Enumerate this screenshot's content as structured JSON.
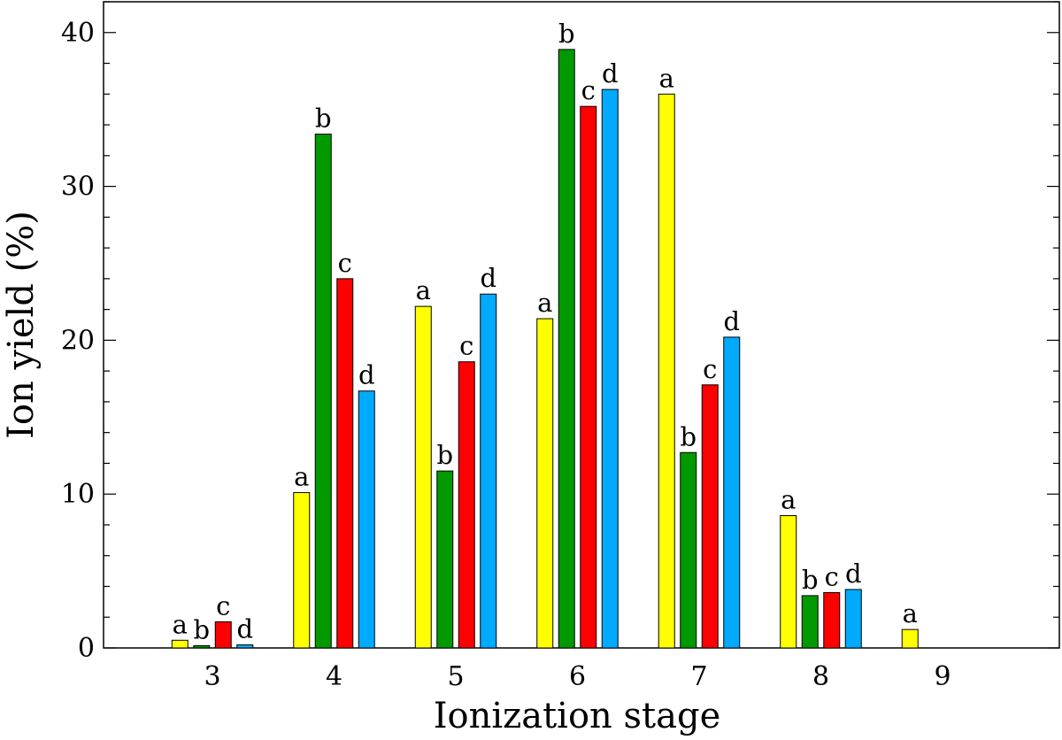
{
  "chart_data": {
    "type": "bar",
    "title": "",
    "xlabel": "Ionization stage",
    "ylabel": "Ion yield (%)",
    "ylim": [
      0,
      42
    ],
    "yticks": [
      0,
      10,
      20,
      30,
      40
    ],
    "categories": [
      "3",
      "4",
      "5",
      "6",
      "7",
      "8",
      "9"
    ],
    "series": [
      {
        "name": "a",
        "color": "#ffff00",
        "values": [
          0.5,
          10.1,
          22.2,
          21.4,
          36.0,
          8.6,
          1.2
        ]
      },
      {
        "name": "b",
        "color": "#009900",
        "values": [
          0.15,
          33.4,
          11.5,
          38.9,
          12.7,
          3.4,
          null
        ]
      },
      {
        "name": "c",
        "color": "#ff0000",
        "values": [
          1.7,
          24.0,
          18.6,
          35.2,
          17.1,
          3.6,
          null
        ]
      },
      {
        "name": "d",
        "color": "#00aaff",
        "values": [
          0.2,
          16.7,
          23.0,
          36.3,
          20.2,
          3.8,
          null
        ]
      }
    ],
    "grid": false,
    "legend": "none"
  }
}
